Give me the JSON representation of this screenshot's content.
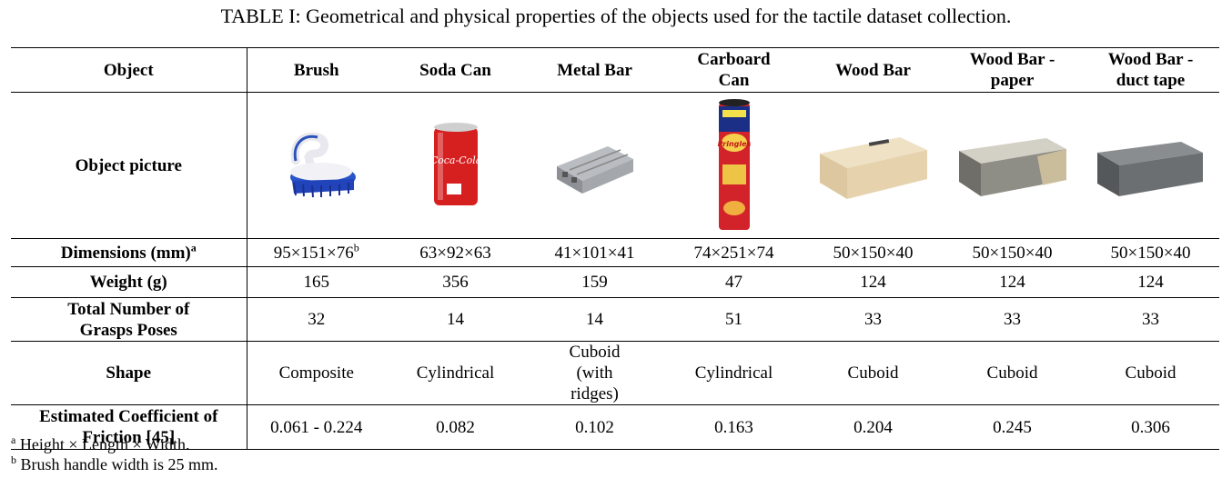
{
  "caption": "TABLE I: Geometrical and physical properties of the objects used for the tactile dataset collection.",
  "header": {
    "object": "Object",
    "columns": [
      "Brush",
      "Soda Can",
      "Metal Bar",
      "Carboard Can",
      "Wood Bar",
      "Wood Bar - paper",
      "Wood Bar - duct tape"
    ]
  },
  "rows": {
    "picture_label": "Object picture",
    "dimensions_label": "Dimensions (mm)",
    "dimensions_label_sup": "a",
    "dimensions": [
      "95×151×76",
      "63×92×63",
      "41×101×41",
      "74×251×74",
      "50×150×40",
      "50×150×40",
      "50×150×40"
    ],
    "dimensions_first_sup": "b",
    "weight_label": "Weight (g)",
    "weight": [
      "165",
      "356",
      "159",
      "47",
      "124",
      "124",
      "124"
    ],
    "grasps_label": "Total Number of Grasps Poses",
    "grasps": [
      "32",
      "14",
      "14",
      "51",
      "33",
      "33",
      "33"
    ],
    "shape_label": "Shape",
    "shape": [
      "Composite",
      "Cylindrical",
      "Cuboid (with ridges)",
      "Cylindrical",
      "Cuboid",
      "Cuboid",
      "Cuboid"
    ],
    "friction_label": "Estimated Coefficient of Friction [45]",
    "friction": [
      "0.061 - 0.224",
      "0.082",
      "0.102",
      "0.163",
      "0.204",
      "0.245",
      "0.306"
    ]
  },
  "pictures": {
    "brush": "brush-photo",
    "soda": "soda-can-photo",
    "soda_text": "Coca-Cola",
    "metal": "metal-bar-photo",
    "carboard": "pringles-can-photo",
    "carboard_text": "Pringles",
    "wood": "wood-bar-photo",
    "wood_paper": "wood-bar-paper-photo",
    "wood_tape": "wood-bar-duct-tape-photo"
  },
  "footnotes": {
    "a_mark": "a",
    "a_text": "Height × Length × Width.",
    "b_mark": "b",
    "b_text": "Brush handle width is 25 mm."
  }
}
